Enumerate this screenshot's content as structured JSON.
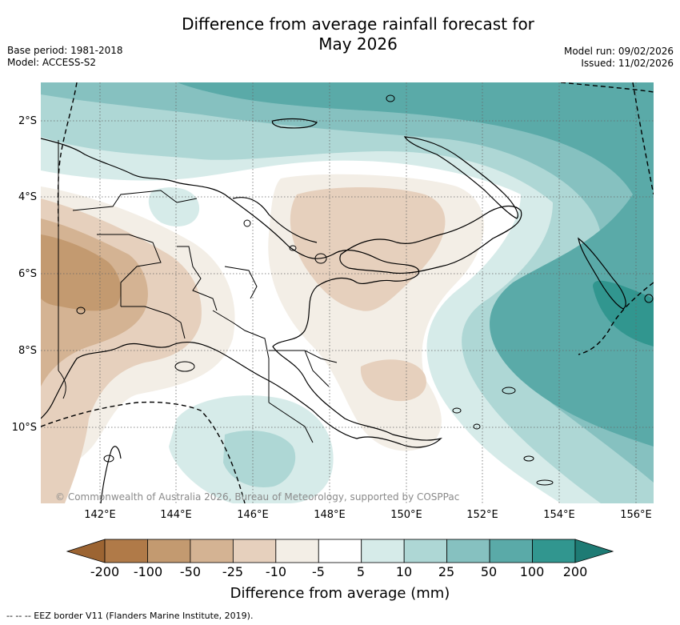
{
  "title": {
    "line1": "Difference from average rainfall forecast for",
    "line2": "May 2026"
  },
  "meta": {
    "base_period": "Base period: 1981-2018",
    "model": "Model: ACCESS-S2",
    "model_run": "Model run: 09/02/2026",
    "issued": "Issued: 11/02/2026"
  },
  "axes": {
    "lat_labels": [
      "2°S",
      "4°S",
      "6°S",
      "8°S",
      "10°S"
    ],
    "lon_labels": [
      "142°E",
      "144°E",
      "146°E",
      "148°E",
      "150°E",
      "152°E",
      "154°E",
      "156°E"
    ]
  },
  "copyright": "© Commonwealth of Australia 2026, Bureau of Meteorology, supported by COSPPac",
  "colorbar": {
    "ticks": [
      "-200",
      "-100",
      "-50",
      "-25",
      "-10",
      "-5",
      "5",
      "10",
      "25",
      "50",
      "100",
      "200"
    ],
    "colors": {
      "under": "#9c6432",
      "bins": [
        "#b07a48",
        "#c39a70",
        "#d4b393",
        "#e6d0bd",
        "#f3eee6",
        "#ffffff",
        "#d6ebe9",
        "#aed7d5",
        "#86c1c0",
        "#5aaaa8",
        "#31968f"
      ],
      "over": "#1e7b74"
    },
    "label": "Difference from average (mm)"
  },
  "eez_note": "-- -- -- EEZ border V11 (Flanders Marine Institute, 2019)."
}
